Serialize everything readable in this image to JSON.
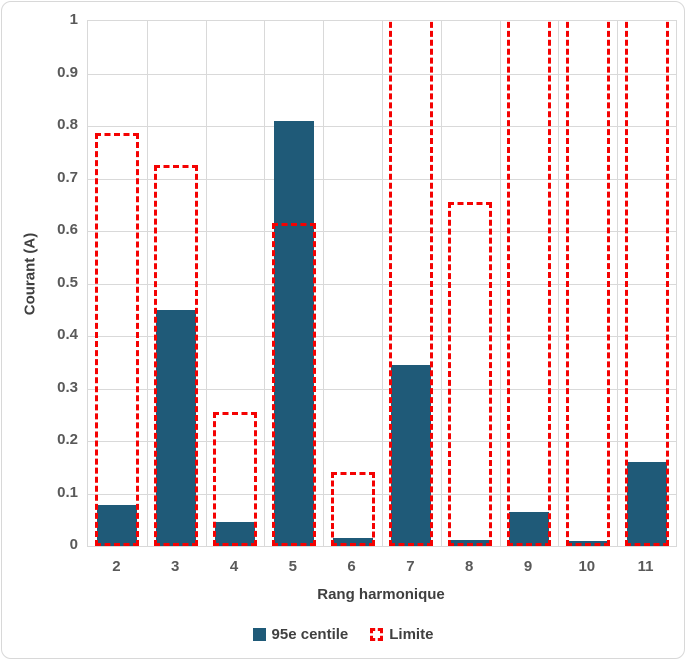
{
  "chart_data": {
    "type": "bar",
    "title": "",
    "xlabel": "Rang harmonique",
    "ylabel": "Courant (A)",
    "ylim": [
      0,
      1
    ],
    "yticks": [
      "1",
      "0.9",
      "0.8",
      "0.7",
      "0.6",
      "0.5",
      "0.4",
      "0.3",
      "0.2",
      "0.1",
      "0"
    ],
    "categories": [
      "2",
      "3",
      "4",
      "5",
      "6",
      "7",
      "8",
      "9",
      "10",
      "11"
    ],
    "series": [
      {
        "name": "95e centile",
        "style": "solid",
        "color": "#1F5A78",
        "values": [
          0.078,
          0.45,
          0.045,
          0.81,
          0.015,
          0.345,
          0.012,
          0.065,
          0.01,
          0.16
        ]
      },
      {
        "name": "Limite",
        "style": "dashed-outline",
        "color": "#F40202",
        "values": [
          0.78,
          0.72,
          0.25,
          0.61,
          0.135,
          null,
          0.65,
          null,
          null,
          null
        ],
        "clipped_above_axis_max": [
          false,
          false,
          false,
          false,
          false,
          true,
          false,
          true,
          true,
          true
        ]
      }
    ],
    "grid": "horizontal-and-vertical",
    "gridline_color": "#D9D9D9",
    "tick_label_color": "#595959",
    "axis_title_color": "#3F3F3F",
    "legend_position": "bottom"
  }
}
